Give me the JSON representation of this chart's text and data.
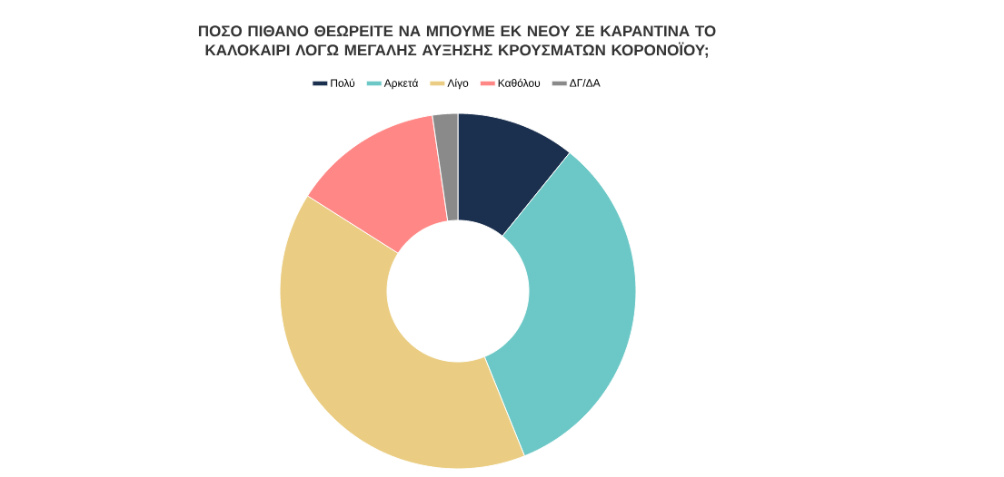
{
  "chart_data": {
    "type": "donut",
    "title": "ΠΟΣΟ ΠΙΘΑΝΟ ΘΕΩΡΕΙΤΕ ΝΑ ΜΠΟΥΜΕ ΕΚ ΝΕΟΥ ΣΕ ΚΑΡΑΝΤΙΝΑ ΤΟ ΚΑΛΟΚΑΙΡΙ ΛΟΓΩ ΜΕΓΑΛΗΣ ΑΥΞΗΣΗΣ ΚΡΟΥΣΜΑΤΩΝ ΚΟΡΟΝΟΪΟΥ;",
    "categories": [
      "Πολύ",
      "Αρκετά",
      "Λίγο",
      "Καθόλου",
      "ΔΓ/ΔΑ"
    ],
    "values": [
      10.8,
      33.1,
      40.1,
      13.7,
      2.3
    ],
    "colors": [
      "#1b2f4e",
      "#6cc8c6",
      "#eacd82",
      "#ff8886",
      "#8a8a8a"
    ],
    "legend": "top"
  }
}
